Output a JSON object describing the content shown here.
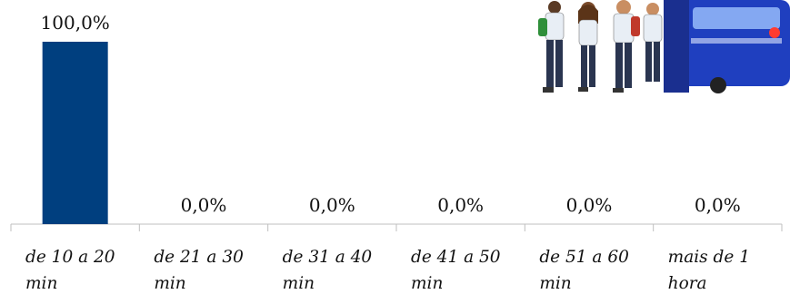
{
  "chart_data": {
    "type": "bar",
    "categories": [
      [
        "de 10 a 20",
        "min"
      ],
      [
        "de 21 a 30",
        "min"
      ],
      [
        "de 31 a 40",
        "min"
      ],
      [
        "de 41 a 50",
        "min"
      ],
      [
        "de 51 a 60",
        "min"
      ],
      [
        "mais de 1",
        "hora"
      ]
    ],
    "values": [
      100.0,
      0.0,
      0.0,
      0.0,
      0.0,
      0.0
    ],
    "data_labels": [
      "100,0%",
      "0,0%",
      "0,0%",
      "0,0%",
      "0,0%",
      "0,0%"
    ],
    "ylim": [
      0,
      100
    ],
    "bar_color": "#003f7f",
    "grid": false,
    "legend": "none"
  },
  "illustration": {
    "icon": "bus-with-students-illustration",
    "colors": {
      "bus": "#1f3fbf",
      "student_shirt": "#e8eef5",
      "student_pants": "#2a3550"
    }
  }
}
